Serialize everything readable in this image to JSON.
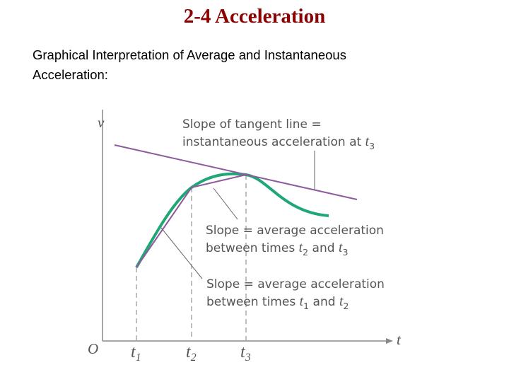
{
  "header": {
    "title": "2-4 Acceleration"
  },
  "body": {
    "lines": [
      "Graphical Interpretation of Average and Instantaneous",
      "Acceleration:"
    ]
  },
  "diagram": {
    "axis_labels": {
      "vertical": "v",
      "horizontal": "t",
      "origin": "O"
    },
    "ticks": [
      {
        "var": "t",
        "sub": "1"
      },
      {
        "var": "t",
        "sub": "2"
      },
      {
        "var": "t",
        "sub": "3"
      }
    ],
    "annotations": [
      {
        "lines": [
          [
            {
              "text": "Slope of tangent line ="
            }
          ],
          [
            {
              "text": "instantaneous acceleration at "
            },
            {
              "var": "t",
              "sub": "3"
            }
          ]
        ]
      },
      {
        "lines": [
          [
            {
              "text": "Slope = average acceleration"
            }
          ],
          [
            {
              "text": "between times "
            },
            {
              "var": "t",
              "sub": "2"
            },
            {
              "text": " and "
            },
            {
              "var": "t",
              "sub": "3"
            }
          ]
        ]
      },
      {
        "lines": [
          [
            {
              "text": "Slope = average acceleration"
            }
          ],
          [
            {
              "text": "between times "
            },
            {
              "var": "t",
              "sub": "1"
            },
            {
              "text": " and "
            },
            {
              "var": "t",
              "sub": "2"
            }
          ]
        ]
      }
    ]
  }
}
